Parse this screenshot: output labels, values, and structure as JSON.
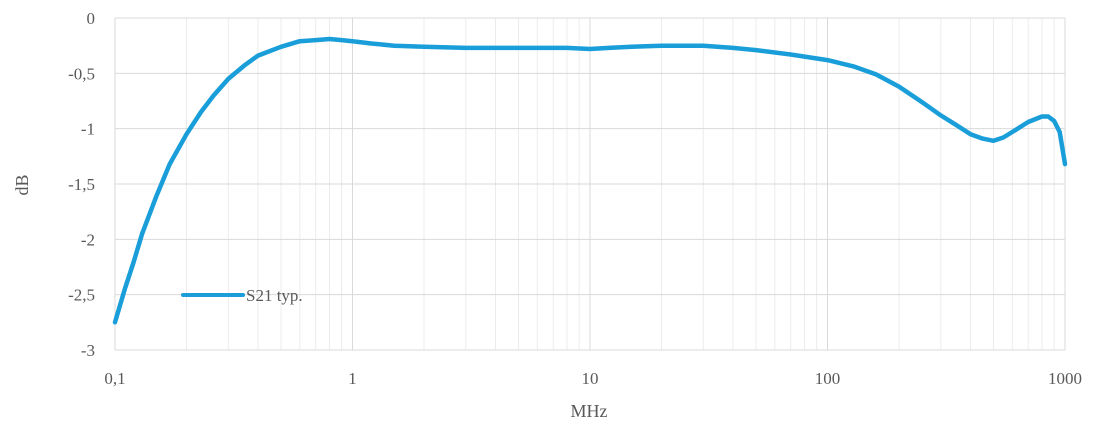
{
  "chart_data": {
    "type": "line",
    "xscale": "log",
    "xlim": [
      0.1,
      1000
    ],
    "ylim": [
      -3,
      0
    ],
    "xlabel": "MHz",
    "ylabel": "dB",
    "x_ticks": [
      "0,1",
      "1",
      "10",
      "100",
      "1000"
    ],
    "y_ticks": [
      "0",
      "-0,5",
      "-1",
      "-1,5",
      "-2",
      "-2,5",
      "-3"
    ],
    "grid": true,
    "legend_position": "bottom-left",
    "series": [
      {
        "name": "S21 typ.",
        "color": "#1a9ed9",
        "x": [
          0.1,
          0.11,
          0.12,
          0.13,
          0.15,
          0.17,
          0.2,
          0.23,
          0.26,
          0.3,
          0.35,
          0.4,
          0.5,
          0.6,
          0.7,
          0.8,
          0.9,
          1,
          1.2,
          1.5,
          2,
          3,
          4,
          5,
          6,
          8,
          10,
          12,
          15,
          20,
          25,
          30,
          40,
          50,
          70,
          100,
          130,
          160,
          200,
          250,
          300,
          350,
          400,
          450,
          500,
          550,
          600,
          700,
          800,
          850,
          900,
          950,
          1000
        ],
        "y": [
          -2.75,
          -2.45,
          -2.2,
          -1.95,
          -1.6,
          -1.32,
          -1.05,
          -0.85,
          -0.7,
          -0.55,
          -0.43,
          -0.34,
          -0.26,
          -0.21,
          -0.2,
          -0.19,
          -0.2,
          -0.21,
          -0.23,
          -0.25,
          -0.26,
          -0.27,
          -0.27,
          -0.27,
          -0.27,
          -0.27,
          -0.28,
          -0.27,
          -0.26,
          -0.25,
          -0.25,
          -0.25,
          -0.27,
          -0.29,
          -0.33,
          -0.38,
          -0.44,
          -0.51,
          -0.62,
          -0.76,
          -0.88,
          -0.97,
          -1.05,
          -1.09,
          -1.11,
          -1.08,
          -1.03,
          -0.94,
          -0.89,
          -0.89,
          -0.93,
          -1.03,
          -1.32
        ]
      }
    ]
  }
}
